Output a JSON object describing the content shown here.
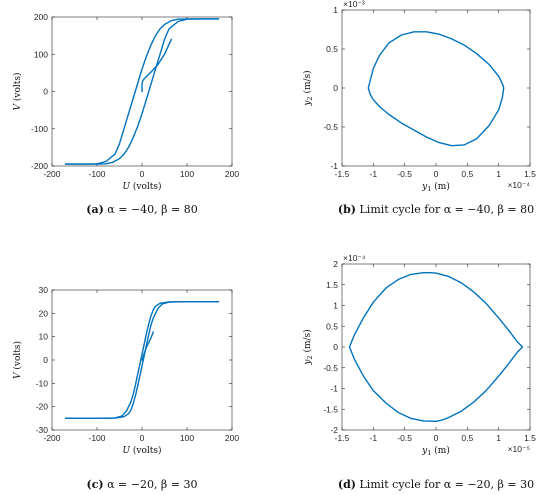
{
  "chart_data": [
    {
      "id": "a",
      "type": "line",
      "caption_label": "(a)",
      "caption": "α = −40, β = 80",
      "xlabel_var": "U",
      "xlabel_unit": "(volts)",
      "ylabel_var": "V",
      "ylabel_unit": "(volts)",
      "xlim": [
        -200,
        200
      ],
      "ylim": [
        -200,
        200
      ],
      "xticks": [
        -200,
        -100,
        0,
        100,
        200
      ],
      "yticks": [
        -200,
        -100,
        0,
        100,
        200
      ],
      "x_exponent": "",
      "y_exponent": "",
      "grid": false,
      "series": [
        {
          "x": [
            -170,
            -100,
            -80,
            -65,
            -50,
            -40,
            -30,
            -20,
            -10,
            0,
            10,
            20,
            30,
            40,
            50,
            60,
            80,
            100,
            120,
            140,
            170
          ],
          "y": [
            -195,
            -195,
            -194,
            -190,
            -180,
            -168,
            -150,
            -125,
            -95,
            -60,
            -20,
            20,
            60,
            100,
            140,
            168,
            188,
            194,
            195,
            195,
            195
          ]
        },
        {
          "x": [
            170,
            100,
            80,
            65,
            50,
            40,
            30,
            20,
            10,
            0,
            -10,
            -20,
            -30,
            -40,
            -50,
            -60,
            -80,
            -100,
            -120,
            -140,
            -170
          ],
          "y": [
            195,
            195,
            194,
            190,
            180,
            168,
            150,
            125,
            95,
            60,
            20,
            -20,
            -60,
            -100,
            -140,
            -168,
            -188,
            -194,
            -195,
            -195,
            -195
          ]
        },
        {
          "x": [
            0,
            0,
            2,
            8,
            20,
            35,
            50,
            65
          ],
          "y": [
            0,
            20,
            30,
            38,
            52,
            72,
            100,
            140
          ]
        }
      ]
    },
    {
      "id": "b",
      "type": "line",
      "caption_label": "(b)",
      "caption": "Limit cycle for α = −40, β = 80",
      "xlabel_var": "y",
      "xlabel_sub": "1",
      "xlabel_unit": "(m)",
      "ylabel_var": "y",
      "ylabel_sub": "2",
      "ylabel_unit": "(m/s)",
      "xlim": [
        -1.5,
        1.5
      ],
      "ylim": [
        -1,
        1
      ],
      "xticks": [
        -1.5,
        -1,
        -0.5,
        0,
        0.5,
        1,
        1.5
      ],
      "yticks": [
        -1,
        -0.5,
        0,
        0.5,
        1
      ],
      "x_exponent": "×10⁻⁴",
      "y_exponent": "×10⁻³",
      "grid": false,
      "series": [
        {
          "x": [
            -1.08,
            -1.0,
            -0.9,
            -0.75,
            -0.55,
            -0.35,
            -0.15,
            0.05,
            0.25,
            0.45,
            0.65,
            0.85,
            1.0,
            1.05,
            1.07,
            1.08,
            1.06,
            1.0,
            0.85,
            0.65,
            0.45,
            0.25,
            0.05,
            -0.15,
            -0.35,
            -0.55,
            -0.75,
            -0.9,
            -1.0,
            -1.05,
            -1.08
          ],
          "y": [
            0,
            0.25,
            0.42,
            0.58,
            0.68,
            0.72,
            0.72,
            0.69,
            0.63,
            0.55,
            0.44,
            0.3,
            0.15,
            0.07,
            0.03,
            0,
            -0.12,
            -0.28,
            -0.48,
            -0.65,
            -0.73,
            -0.74,
            -0.7,
            -0.63,
            -0.54,
            -0.45,
            -0.34,
            -0.24,
            -0.15,
            -0.08,
            0
          ]
        }
      ]
    },
    {
      "id": "c",
      "type": "line",
      "caption_label": "(c)",
      "caption": "α = −20, β = 30",
      "xlabel_var": "U",
      "xlabel_unit": "(volts)",
      "ylabel_var": "V",
      "ylabel_unit": "(volts)",
      "xlim": [
        -200,
        200
      ],
      "ylim": [
        -30,
        30
      ],
      "xticks": [
        -200,
        -100,
        0,
        100,
        200
      ],
      "yticks": [
        -30,
        -20,
        -10,
        0,
        10,
        20,
        30
      ],
      "x_exponent": "",
      "y_exponent": "",
      "grid": false,
      "series": [
        {
          "x": [
            -170,
            -100,
            -60,
            -45,
            -35,
            -25,
            -20,
            -15,
            -10,
            -5,
            0,
            5,
            10,
            15,
            20,
            25,
            30,
            40,
            60,
            100,
            170
          ],
          "y": [
            -25,
            -25,
            -24.8,
            -24,
            -22,
            -18,
            -15,
            -11,
            -6.5,
            -2,
            2.5,
            7,
            11.5,
            15.5,
            19,
            21.5,
            23,
            24.3,
            24.9,
            25,
            25
          ]
        },
        {
          "x": [
            170,
            100,
            60,
            45,
            35,
            25,
            20,
            15,
            10,
            5,
            0,
            -5,
            -10,
            -15,
            -20,
            -25,
            -30,
            -40,
            -60,
            -100,
            -170
          ],
          "y": [
            25,
            25,
            24.8,
            24,
            22,
            18,
            15,
            11,
            6.5,
            2,
            -2.5,
            -7,
            -11.5,
            -15.5,
            -19,
            -21.5,
            -23,
            -24.3,
            -24.9,
            -25,
            -25
          ]
        },
        {
          "x": [
            0,
            5,
            10,
            15,
            20,
            25
          ],
          "y": [
            0,
            3,
            5.5,
            7.5,
            9.5,
            12
          ]
        }
      ]
    },
    {
      "id": "d",
      "type": "line",
      "caption_label": "(d)",
      "caption": "Limit cycle for α = −20, β = 30",
      "xlabel_var": "y",
      "xlabel_sub": "1",
      "xlabel_unit": "(m)",
      "ylabel_var": "y",
      "ylabel_sub": "2",
      "ylabel_unit": "(m/s)",
      "xlim": [
        -1.5,
        1.5
      ],
      "ylim": [
        -2,
        2
      ],
      "xticks": [
        -1.5,
        -1,
        -0.5,
        0,
        0.5,
        1,
        1.5
      ],
      "yticks": [
        -2,
        -1.5,
        -1,
        -0.5,
        0,
        0.5,
        1,
        1.5,
        2
      ],
      "x_exponent": "×10⁻⁵",
      "y_exponent": "×10⁻⁴",
      "grid": false,
      "series": [
        {
          "x": [
            -1.38,
            -1.3,
            -1.15,
            -1.0,
            -0.8,
            -0.6,
            -0.4,
            -0.2,
            -0.1,
            0.0,
            0.2,
            0.4,
            0.6,
            0.8,
            1.0,
            1.15,
            1.3,
            1.38,
            1.3,
            1.15,
            1.0,
            0.8,
            0.6,
            0.4,
            0.2,
            0.1,
            0.0,
            -0.2,
            -0.4,
            -0.6,
            -0.8,
            -1.0,
            -1.15,
            -1.3,
            -1.38
          ],
          "y": [
            0,
            0.3,
            0.72,
            1.08,
            1.42,
            1.63,
            1.75,
            1.79,
            1.79,
            1.78,
            1.7,
            1.55,
            1.33,
            1.05,
            0.7,
            0.42,
            0.12,
            0,
            -0.12,
            -0.42,
            -0.7,
            -1.05,
            -1.33,
            -1.55,
            -1.7,
            -1.76,
            -1.79,
            -1.78,
            -1.72,
            -1.58,
            -1.35,
            -1.05,
            -0.72,
            -0.3,
            0
          ]
        }
      ]
    }
  ]
}
